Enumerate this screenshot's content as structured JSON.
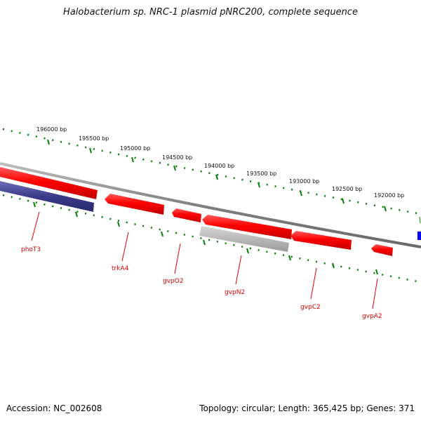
{
  "title": "Halobacterium sp. NRC-1 plasmid pNRC200, complete sequence",
  "footer": {
    "accession": "Accession: NC_002608",
    "stats": "Topology: circular; Length: 365,425 bp; Genes: 371"
  },
  "colors": {
    "backbone": "#808080",
    "tick": "#008000",
    "gene_forward": "#ff0000",
    "gene_reverse_blue": "#3a3a8a",
    "gene_gray": "#b8b8b8",
    "gene_label": "#e00000"
  },
  "bp_markers": [
    "196000 bp",
    "195500 bp",
    "195000 bp",
    "194500 bp",
    "194000 bp",
    "193500 bp",
    "193000 bp",
    "192500 bp",
    "192000 bp"
  ],
  "gene_labels": [
    "phoT3",
    "trkA4",
    "gvpO2",
    "gvpN2",
    "gvpC2",
    "gvpA2"
  ]
}
